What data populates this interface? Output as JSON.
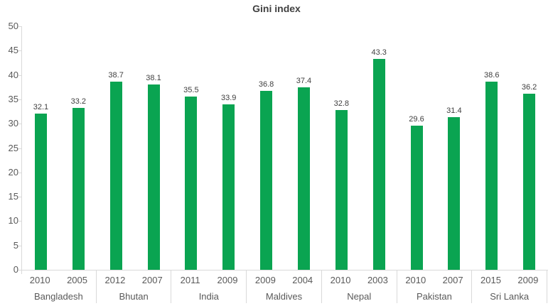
{
  "chart_data": {
    "type": "bar",
    "title": "Gini index",
    "xlabel": "",
    "ylabel": "",
    "ylim": [
      0,
      50
    ],
    "yticks": [
      0,
      5,
      10,
      15,
      20,
      25,
      30,
      35,
      40,
      45,
      50
    ],
    "grid": false,
    "legend": false,
    "bar_color": "#0aa451",
    "axis_line_color": "#d9d9d9",
    "value_label_color": "#404040",
    "tick_label_color": "#595959",
    "groups": [
      {
        "country": "Bangladesh",
        "bars": [
          {
            "year": "2010",
            "value": 32.1
          },
          {
            "year": "2005",
            "value": 33.2
          }
        ]
      },
      {
        "country": "Bhutan",
        "bars": [
          {
            "year": "2012",
            "value": 38.7
          },
          {
            "year": "2007",
            "value": 38.1
          }
        ]
      },
      {
        "country": "India",
        "bars": [
          {
            "year": "2011",
            "value": 35.5
          },
          {
            "year": "2009",
            "value": 33.9
          }
        ]
      },
      {
        "country": "Maldives",
        "bars": [
          {
            "year": "2009",
            "value": 36.8
          },
          {
            "year": "2004",
            "value": 37.4
          }
        ]
      },
      {
        "country": "Nepal",
        "bars": [
          {
            "year": "2010",
            "value": 32.8
          },
          {
            "year": "2003",
            "value": 43.3
          }
        ]
      },
      {
        "country": "Pakistan",
        "bars": [
          {
            "year": "2010",
            "value": 29.6
          },
          {
            "year": "2007",
            "value": 31.4
          }
        ]
      },
      {
        "country": "Sri Lanka",
        "bars": [
          {
            "year": "2015",
            "value": 38.6
          },
          {
            "year": "2009",
            "value": 36.2
          }
        ]
      }
    ]
  }
}
